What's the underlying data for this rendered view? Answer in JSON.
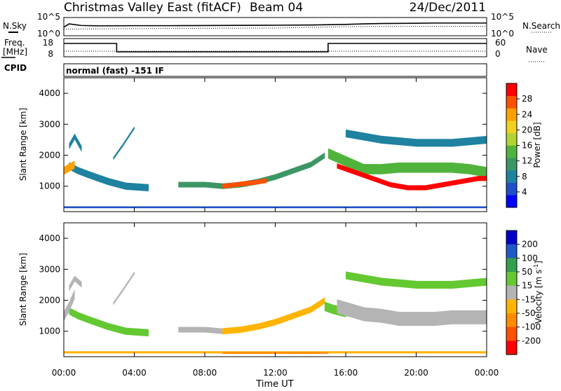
{
  "title": {
    "station": "Christmas Valley East (fitACF)",
    "beam": "Beam 04",
    "date": "24/Dec/2011"
  },
  "small_panels": {
    "nsky_label": "N.Sky",
    "nsearch_label": "N.Search",
    "freq_label_1": "Freq.",
    "freq_label_2": "[MHz]",
    "nave_label": "Nave",
    "cpid_label": "CPID",
    "cpid_value": "normal (fast) -151 IF",
    "noise_ticks": [
      "10^5",
      "10^0"
    ],
    "freq_ticks": [
      "18",
      "8"
    ],
    "nave_ticks": [
      "60",
      "0"
    ]
  },
  "axes": {
    "x_label": "Time UT",
    "x_ticks": [
      "00:00",
      "04:00",
      "08:00",
      "12:00",
      "16:00",
      "20:00",
      "00:00"
    ],
    "y_label": "Slant Range [km]",
    "y_ticks": [
      "1000",
      "2000",
      "3000",
      "4000"
    ]
  },
  "colorbars": {
    "power": {
      "label": "Power [dB]",
      "ticks": [
        "4",
        "8",
        "12",
        "16",
        "20",
        "24",
        "28"
      ],
      "colors": [
        "#0000ff",
        "#1e50c8",
        "#1e82a0",
        "#3c9664",
        "#50b43c",
        "#b4d232",
        "#f0d21e",
        "#ffa000",
        "#ff5000",
        "#ff0000"
      ]
    },
    "velocity": {
      "label": "Velocity [m s",
      "label_sup": "-1",
      "label_end": "]",
      "ticks": [
        "200",
        "100",
        "50",
        "15",
        "-15",
        "-50",
        "-100",
        "-200"
      ],
      "colors": [
        "#0000c8",
        "#1e5ac8",
        "#32a050",
        "#64c832",
        "#b4b4b4",
        "#ffb400",
        "#ff8c00",
        "#ff5000",
        "#ff0000"
      ]
    }
  },
  "chart_data": [
    {
      "type": "line",
      "title": "N.Sky / N.Search",
      "x_unit": "hours UT",
      "y_scale": "log",
      "ylim": [
        1,
        100000
      ],
      "series": [
        {
          "name": "N.Sky",
          "style": "solid",
          "x": [
            0,
            0.3,
            1,
            2,
            4,
            6,
            8,
            10,
            12,
            14,
            16,
            17,
            18,
            20,
            21,
            22,
            24
          ],
          "y": [
            200,
            3000,
            800,
            600,
            700,
            700,
            800,
            900,
            1000,
            1200,
            2000,
            3000,
            4000,
            5000,
            6000,
            6000,
            6000
          ]
        },
        {
          "name": "N.Search",
          "style": "dotted",
          "x": [
            0,
            4,
            8,
            12,
            16,
            20,
            24
          ],
          "y": [
            40,
            60,
            80,
            100,
            300,
            400,
            400
          ]
        }
      ]
    },
    {
      "type": "line",
      "title": "Freq. / Nave",
      "x_unit": "hours UT",
      "series": [
        {
          "name": "Freq. [MHz]",
          "style": "solid",
          "x": [
            0,
            3,
            3,
            15,
            15,
            24
          ],
          "y": [
            16,
            16,
            10,
            10,
            16,
            16
          ],
          "ylim": [
            8,
            18
          ]
        },
        {
          "name": "Nave",
          "style": "dotted",
          "x": [
            0,
            24
          ],
          "y": [
            15,
            15
          ],
          "ylim": [
            0,
            60
          ]
        }
      ]
    },
    {
      "type": "heatmap",
      "title": "Power [dB]",
      "x_unit": "hours UT",
      "xlim": [
        0,
        24
      ],
      "y_unit": "km",
      "ylim": [
        180,
        4500
      ],
      "clim": [
        0,
        30
      ],
      "features": [
        {
          "name": "evening band",
          "x": [
            0.3,
            0.8,
            1.5,
            2.5,
            3.5,
            4.8
          ],
          "y": [
            1650,
            1500,
            1350,
            1150,
            1000,
            950
          ],
          "width": 230,
          "value": 6
        },
        {
          "name": "early echo",
          "x": [
            0,
            0.3,
            0.6
          ],
          "y": [
            1500,
            1600,
            1700
          ],
          "width": 250,
          "value": 22
        },
        {
          "name": "high arc",
          "x": [
            0.3,
            0.6,
            1.0
          ],
          "y": [
            2300,
            2600,
            2200
          ],
          "width": 180,
          "value": 8
        },
        {
          "name": "thin arc",
          "x": [
            2.8,
            3.3,
            4.0
          ],
          "y": [
            1900,
            2300,
            2900
          ],
          "width": 80,
          "value": 8
        },
        {
          "name": "dayside band",
          "x": [
            6.5,
            8,
            9,
            10,
            11,
            12,
            13,
            14,
            14.8
          ],
          "y": [
            1050,
            1050,
            1000,
            1050,
            1150,
            1300,
            1500,
            1700,
            2000
          ],
          "width": 180,
          "value": 10
        },
        {
          "name": "dayside core",
          "x": [
            9,
            9.5,
            10,
            10.5,
            11.5
          ],
          "y": [
            1000,
            1030,
            1070,
            1100,
            1180
          ],
          "width": 150,
          "value": 26
        },
        {
          "name": "night band",
          "x": [
            15,
            16,
            17,
            18,
            19,
            20,
            21,
            22,
            23,
            24
          ],
          "y": [
            2050,
            1800,
            1550,
            1550,
            1600,
            1600,
            1600,
            1600,
            1550,
            1450
          ],
          "width": 330,
          "value": 14
        },
        {
          "name": "night core",
          "x": [
            15.5,
            16.5,
            17.5,
            18.5,
            19.5,
            20.5,
            21.5,
            22.5,
            23.5,
            24
          ],
          "y": [
            1650,
            1450,
            1250,
            1050,
            950,
            950,
            1050,
            1150,
            1250,
            1250
          ],
          "width": 160,
          "value": 28
        },
        {
          "name": "ground scatter strip",
          "x": [
            0,
            24
          ],
          "y": [
            320,
            320
          ],
          "width": 60,
          "value": 5
        },
        {
          "name": "night upper",
          "x": [
            16,
            18,
            20,
            22,
            24
          ],
          "y": [
            2700,
            2500,
            2400,
            2400,
            2500
          ],
          "width": 250,
          "value": 6
        }
      ]
    },
    {
      "type": "heatmap",
      "title": "Velocity [m s-1]",
      "x_unit": "hours UT",
      "xlim": [
        0,
        24
      ],
      "y_unit": "km",
      "ylim": [
        180,
        4500
      ],
      "clim": [
        -200,
        200
      ],
      "features": [
        {
          "name": "evening band",
          "x": [
            0.3,
            0.8,
            1.5,
            2.5,
            3.5,
            4.8
          ],
          "y": [
            1650,
            1500,
            1350,
            1150,
            1000,
            950
          ],
          "width": 230,
          "value": 30
        },
        {
          "name": "early echo",
          "x": [
            0,
            0.3,
            0.6
          ],
          "y": [
            1500,
            1800,
            2200
          ],
          "width": 300,
          "value": 0
        },
        {
          "name": "high arc",
          "x": [
            0.3,
            0.6,
            1.0
          ],
          "y": [
            2400,
            2700,
            2500
          ],
          "width": 180,
          "value": 0
        },
        {
          "name": "thin arc",
          "x": [
            2.8,
            3.3,
            4.0
          ],
          "y": [
            1900,
            2300,
            2900
          ],
          "width": 80,
          "value": 0
        },
        {
          "name": "dayside grey",
          "x": [
            6.5,
            8,
            9
          ],
          "y": [
            1050,
            1050,
            1000
          ],
          "width": 180,
          "value": 0
        },
        {
          "name": "dayside band",
          "x": [
            9,
            10,
            11,
            12,
            13,
            14,
            14.8
          ],
          "y": [
            1000,
            1050,
            1150,
            1300,
            1500,
            1700,
            2000
          ],
          "width": 200,
          "value": -40
        },
        {
          "name": "dusk green",
          "x": [
            14.8,
            15.3,
            16
          ],
          "y": [
            1800,
            1700,
            1600
          ],
          "width": 300,
          "value": 30
        },
        {
          "name": "night band",
          "x": [
            15.5,
            17,
            18,
            19,
            20,
            21,
            22,
            23,
            24
          ],
          "y": [
            1800,
            1550,
            1500,
            1400,
            1400,
            1400,
            1450,
            1450,
            1450
          ],
          "width": 450,
          "value": 0
        },
        {
          "name": "ground scatter strip",
          "x": [
            0,
            24
          ],
          "y": [
            320,
            320
          ],
          "width": 70,
          "value": -40
        },
        {
          "name": "ground scatter core",
          "x": [
            9,
            12,
            15
          ],
          "y": [
            300,
            300,
            300
          ],
          "width": 60,
          "value": -90
        },
        {
          "name": "night upper",
          "x": [
            16,
            18,
            20,
            22,
            24
          ],
          "y": [
            2800,
            2600,
            2500,
            2500,
            2600
          ],
          "width": 250,
          "value": 40
        }
      ]
    }
  ]
}
